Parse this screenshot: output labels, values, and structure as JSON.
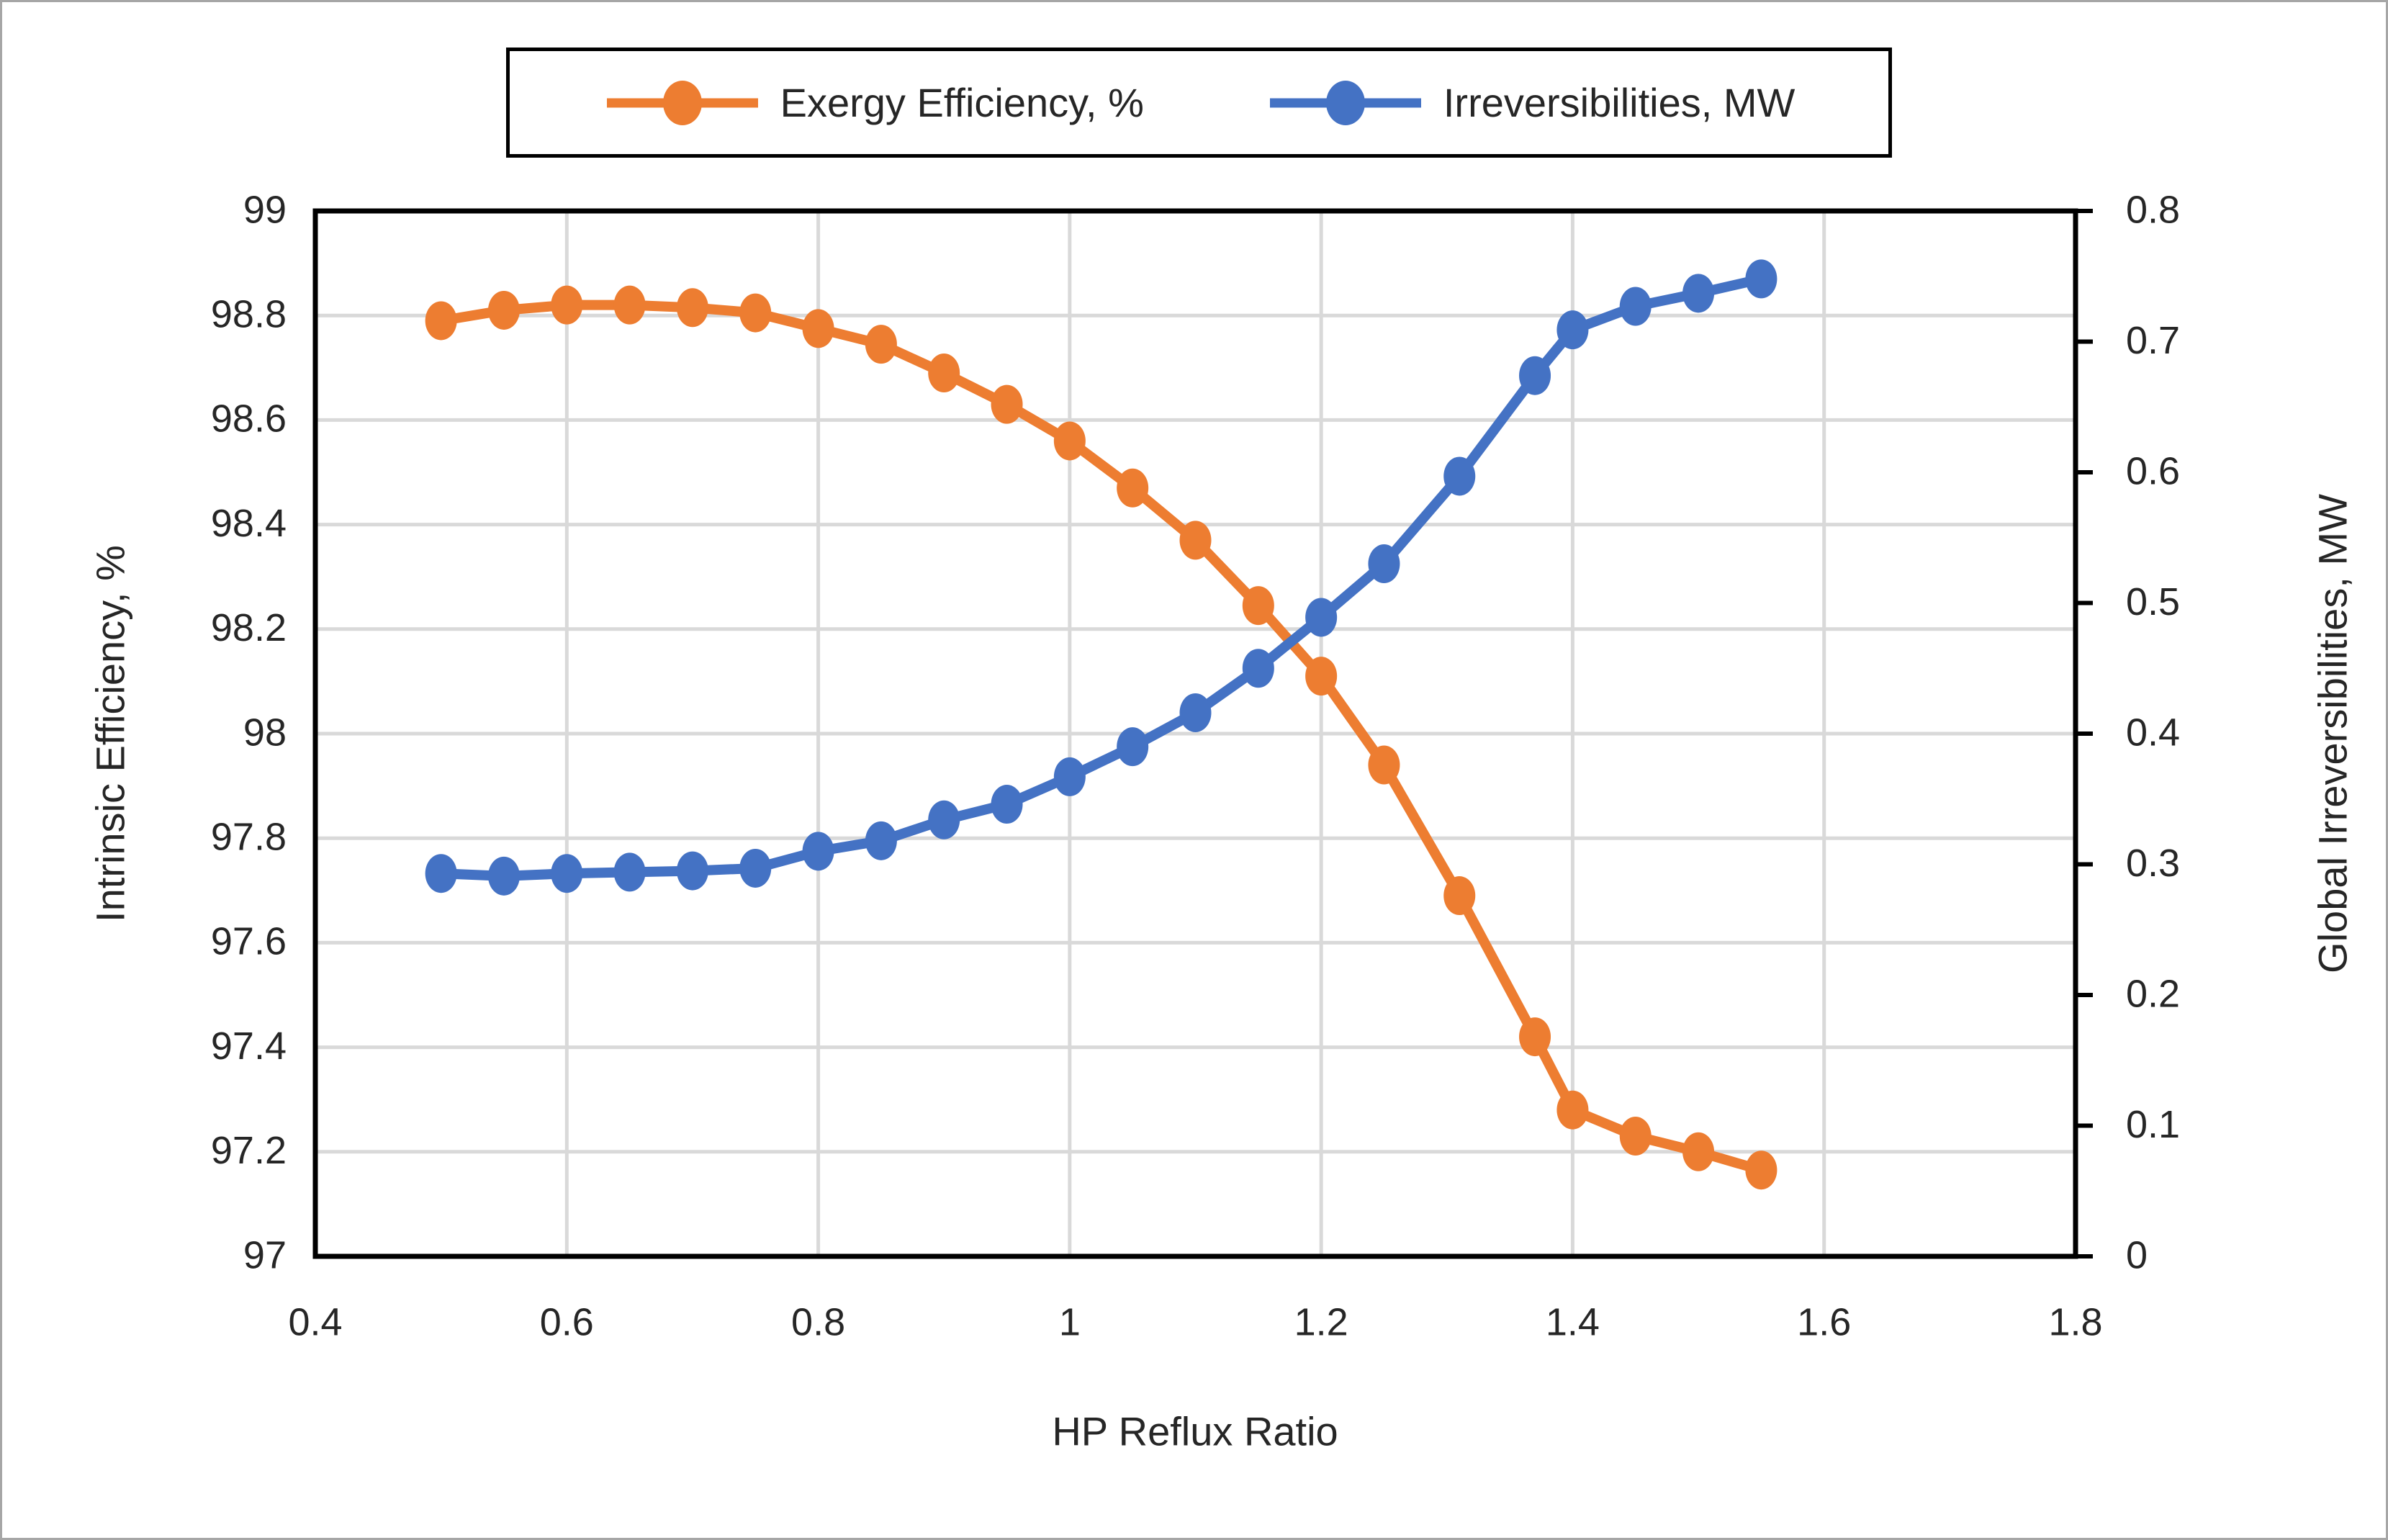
{
  "chart_data": {
    "type": "line",
    "title": "",
    "xlabel": "HP Reflux Ratio",
    "ylabel_left": "Intrinsic Efficiency, %",
    "ylabel_right": "Global Irreversibilities, MW",
    "grid": true,
    "legend_position": "top",
    "x_axis": {
      "min": 0.4,
      "max": 1.8,
      "ticks": [
        0.4,
        0.6,
        0.8,
        1.0,
        1.2,
        1.4,
        1.6,
        1.8
      ],
      "tick_labels": [
        "0.4",
        "0.6",
        "0.8",
        "1",
        "1.2",
        "1.4",
        "1.6",
        "1.8"
      ]
    },
    "left_axis": {
      "min": 97,
      "max": 99,
      "ticks": [
        97,
        97.2,
        97.4,
        97.6,
        97.8,
        98,
        98.2,
        98.4,
        98.6,
        98.8,
        99
      ],
      "tick_labels": [
        "97",
        "97.2",
        "97.4",
        "97.6",
        "97.8",
        "98",
        "98.2",
        "98.4",
        "98.6",
        "98.8",
        "99"
      ]
    },
    "right_axis": {
      "min": 0,
      "max": 0.8,
      "ticks": [
        0,
        0.1,
        0.2,
        0.3,
        0.4,
        0.5,
        0.6,
        0.7,
        0.8
      ],
      "tick_labels": [
        "0",
        "0.1",
        "0.2",
        "0.3",
        "0.4",
        "0.5",
        "0.6",
        "0.7",
        "0.8"
      ]
    },
    "x": [
      0.5,
      0.55,
      0.6,
      0.65,
      0.7,
      0.75,
      0.8,
      0.85,
      0.9,
      0.95,
      1.0,
      1.05,
      1.1,
      1.15,
      1.2,
      1.25,
      1.31,
      1.37,
      1.4,
      1.45,
      1.5,
      1.55
    ],
    "series": [
      {
        "name": "Exergy Efficiency, %",
        "axis": "left",
        "color": "#ED7D31",
        "values": [
          98.79,
          98.81,
          98.82,
          98.82,
          98.815,
          98.805,
          98.775,
          98.745,
          98.69,
          98.63,
          98.56,
          98.47,
          98.37,
          98.245,
          98.11,
          97.94,
          97.69,
          97.42,
          97.28,
          97.23,
          97.2,
          97.165
        ]
      },
      {
        "name": "Irreversibilities, MW",
        "axis": "right",
        "color": "#4472C4",
        "values": [
          0.293,
          0.291,
          0.293,
          0.294,
          0.295,
          0.297,
          0.31,
          0.318,
          0.334,
          0.346,
          0.367,
          0.39,
          0.416,
          0.45,
          0.489,
          0.53,
          0.597,
          0.674,
          0.709,
          0.727,
          0.737,
          0.748
        ]
      }
    ],
    "colors": {
      "grid": "#D9D9D9",
      "frame": "#000000",
      "text": "#262626",
      "background": "#FFFFFF"
    }
  }
}
